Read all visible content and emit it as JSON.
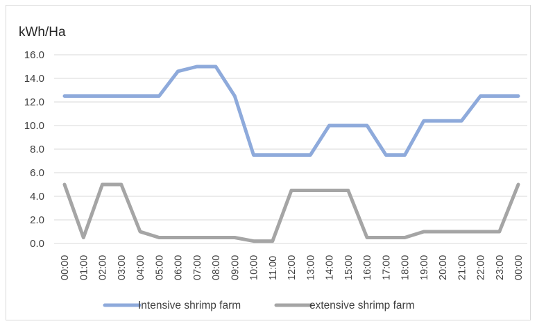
{
  "chart_data": {
    "type": "line",
    "ylabel": "kWh/Ha",
    "ylim": [
      0,
      16
    ],
    "ytick_step": 2,
    "ytick_labels": [
      "0.0",
      "2.0",
      "4.0",
      "6.0",
      "8.0",
      "10.0",
      "12.0",
      "14.0",
      "16.0"
    ],
    "grid": true,
    "legend_position": "bottom",
    "categories": [
      "00:00",
      "01:00",
      "02:00",
      "03:00",
      "04:00",
      "05:00",
      "06:00",
      "07:00",
      "08:00",
      "09:00",
      "10:00",
      "11:00",
      "12:00",
      "13:00",
      "14:00",
      "15:00",
      "16:00",
      "17:00",
      "18:00",
      "19:00",
      "20:00",
      "21:00",
      "22:00",
      "23:00",
      "00:00"
    ],
    "series": [
      {
        "name": "Intensive shrimp farm",
        "color": "#8eaadb",
        "values": [
          12.5,
          12.5,
          12.5,
          12.5,
          12.5,
          12.5,
          14.6,
          15.0,
          15.0,
          12.5,
          7.5,
          7.5,
          7.5,
          7.5,
          10.0,
          10.0,
          10.0,
          7.5,
          7.5,
          10.4,
          10.4,
          10.4,
          12.5,
          12.5,
          12.5
        ]
      },
      {
        "name": "extensive shrimp farm",
        "color": "#a5a5a5",
        "values": [
          5.0,
          0.5,
          5.0,
          5.0,
          1.0,
          0.5,
          0.5,
          0.5,
          0.5,
          0.5,
          0.2,
          0.2,
          4.5,
          4.5,
          4.5,
          4.5,
          0.5,
          0.5,
          0.5,
          1.0,
          1.0,
          1.0,
          1.0,
          1.0,
          5.0
        ]
      }
    ]
  }
}
